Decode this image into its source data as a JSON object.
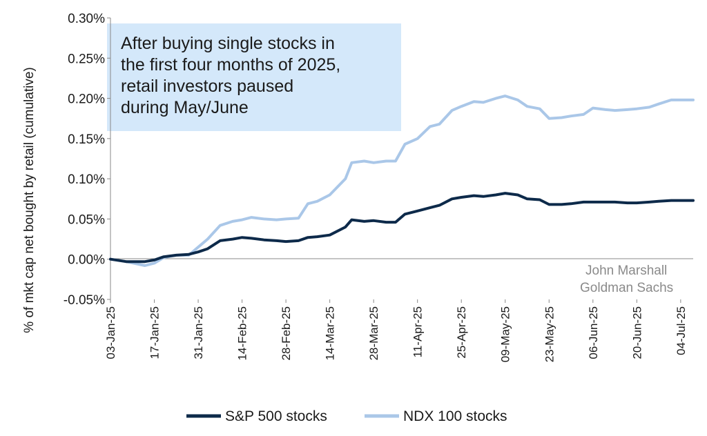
{
  "chart_data": {
    "type": "line",
    "title": "",
    "xlabel": "",
    "ylabel": "% of mkt cap net bought by retail (cumulative)",
    "ylim": [
      -0.0005,
      0.003
    ],
    "yticks": [
      "-0.05%",
      "0.00%",
      "0.05%",
      "0.10%",
      "0.15%",
      "0.20%",
      "0.25%",
      "0.30%"
    ],
    "xlim": [
      "2025-01-03",
      "2025-07-08"
    ],
    "xticks": [
      "03-Jan-25",
      "17-Jan-25",
      "31-Jan-25",
      "14-Feb-25",
      "28-Feb-25",
      "14-Mar-25",
      "28-Mar-25",
      "11-Apr-25",
      "25-Apr-25",
      "09-May-25",
      "23-May-25",
      "06-Jun-25",
      "20-Jun-25",
      "04-Jul-25"
    ],
    "grid": false,
    "legend_position": "bottom",
    "annotation": [
      "After buying single stocks in",
      "the first four months of 2025,",
      "retail investors paused",
      "during May/June"
    ],
    "credit": [
      "John Marshall",
      "Goldman Sachs"
    ],
    "colors": {
      "sp500": "#0d2a4a",
      "ndx": "#aac7e8",
      "annotation_bg": "#d4e8fa"
    },
    "series": [
      {
        "name": "S&P 500 stocks",
        "x": [
          "2025-01-03",
          "2025-01-08",
          "2025-01-14",
          "2025-01-17",
          "2025-01-20",
          "2025-01-24",
          "2025-01-28",
          "2025-01-31",
          "2025-02-03",
          "2025-02-07",
          "2025-02-11",
          "2025-02-14",
          "2025-02-17",
          "2025-02-21",
          "2025-02-25",
          "2025-02-28",
          "2025-03-04",
          "2025-03-07",
          "2025-03-10",
          "2025-03-14",
          "2025-03-19",
          "2025-03-21",
          "2025-03-25",
          "2025-03-28",
          "2025-04-01",
          "2025-04-04",
          "2025-04-07",
          "2025-04-11",
          "2025-04-15",
          "2025-04-18",
          "2025-04-22",
          "2025-04-25",
          "2025-04-29",
          "2025-05-02",
          "2025-05-06",
          "2025-05-09",
          "2025-05-13",
          "2025-05-16",
          "2025-05-20",
          "2025-05-23",
          "2025-05-27",
          "2025-05-30",
          "2025-06-03",
          "2025-06-06",
          "2025-06-10",
          "2025-06-13",
          "2025-06-17",
          "2025-06-20",
          "2025-06-24",
          "2025-06-27",
          "2025-07-01",
          "2025-07-04",
          "2025-07-08"
        ],
        "values": [
          0.0,
          -3e-05,
          -3e-05,
          -1e-05,
          3e-05,
          5e-05,
          6e-05,
          9e-05,
          0.00013,
          0.00023,
          0.00025,
          0.00027,
          0.00026,
          0.00024,
          0.00023,
          0.00022,
          0.00023,
          0.00027,
          0.00028,
          0.0003,
          0.0004,
          0.00049,
          0.00047,
          0.00048,
          0.00046,
          0.00046,
          0.00056,
          0.0006,
          0.00064,
          0.00067,
          0.00075,
          0.00077,
          0.00079,
          0.00078,
          0.0008,
          0.00082,
          0.0008,
          0.00075,
          0.00074,
          0.00068,
          0.00068,
          0.00069,
          0.00071,
          0.00071,
          0.00071,
          0.00071,
          0.0007,
          0.0007,
          0.00071,
          0.00072,
          0.00073,
          0.00073,
          0.00073
        ]
      },
      {
        "name": "NDX 100 stocks",
        "x": [
          "2025-01-03",
          "2025-01-08",
          "2025-01-14",
          "2025-01-17",
          "2025-01-20",
          "2025-01-24",
          "2025-01-28",
          "2025-01-31",
          "2025-02-03",
          "2025-02-07",
          "2025-02-11",
          "2025-02-14",
          "2025-02-17",
          "2025-02-21",
          "2025-02-25",
          "2025-02-28",
          "2025-03-04",
          "2025-03-07",
          "2025-03-10",
          "2025-03-14",
          "2025-03-19",
          "2025-03-21",
          "2025-03-25",
          "2025-03-28",
          "2025-04-01",
          "2025-04-04",
          "2025-04-07",
          "2025-04-11",
          "2025-04-15",
          "2025-04-18",
          "2025-04-22",
          "2025-04-25",
          "2025-04-29",
          "2025-05-02",
          "2025-05-06",
          "2025-05-09",
          "2025-05-13",
          "2025-05-16",
          "2025-05-20",
          "2025-05-23",
          "2025-05-27",
          "2025-05-30",
          "2025-06-03",
          "2025-06-06",
          "2025-06-10",
          "2025-06-13",
          "2025-06-17",
          "2025-06-20",
          "2025-06-24",
          "2025-06-27",
          "2025-07-01",
          "2025-07-04",
          "2025-07-08"
        ],
        "values": [
          0.0,
          -3e-05,
          -8e-05,
          -5e-05,
          2e-05,
          5e-05,
          5e-05,
          0.00015,
          0.00025,
          0.00042,
          0.00047,
          0.00049,
          0.00052,
          0.0005,
          0.00049,
          0.0005,
          0.00051,
          0.00069,
          0.00072,
          0.0008,
          0.001,
          0.0012,
          0.00122,
          0.0012,
          0.00122,
          0.00122,
          0.00143,
          0.0015,
          0.00165,
          0.00168,
          0.00185,
          0.0019,
          0.00196,
          0.00195,
          0.002,
          0.00203,
          0.00198,
          0.0019,
          0.00187,
          0.00175,
          0.00176,
          0.00178,
          0.0018,
          0.00188,
          0.00186,
          0.00185,
          0.00186,
          0.00187,
          0.00189,
          0.00193,
          0.00198,
          0.00198,
          0.00198
        ]
      }
    ]
  }
}
